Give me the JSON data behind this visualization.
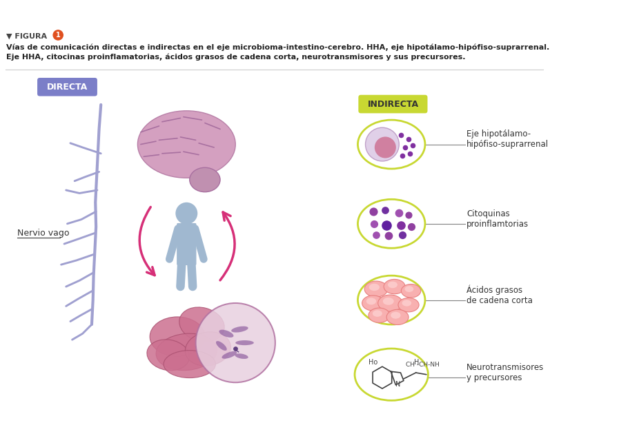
{
  "title_tag": "▼ FIGURA",
  "title_num": "1",
  "subtitle1": "Vías de comunicación directas e indirectas en el eje microbioma-intestino-cerebro. HHA, eje hipotálamo-hipófiso-suprarrenal.",
  "subtitle2": "Eje HHA, citocinas proinflamatorias, ácidos grasos de cadena corta, neurotransmisores y sus precursores.",
  "directa_label": "DIRECTA",
  "directa_bg": "#7B7EC8",
  "indirecta_label": "INDIRECTA",
  "indirecta_bg": "#C8D832",
  "nervio_vago_label": "Nervio vago",
  "bg_color": "#ffffff",
  "arrow_color": "#D63078",
  "brain_color": "#D4A0C0",
  "intestine_color": "#C87090",
  "body_color": "#A0B8D0",
  "circle_border_color": "#C8D832",
  "circle1_label": "Eje hipotálamo-\nhipófiso-suprarrenal",
  "circle2_label": "Citoquinas\nproinflamtorias",
  "circle3_label": "Ácidos grasos\nde cadena corta",
  "circle4_label": "Neurotransmisores\ny precursores",
  "purple_dot_color": "#8B3A8B",
  "light_purple_dot": "#C070C0",
  "pink_dot_color": "#F0A0A0",
  "light_pink_dot": "#F8C8C8"
}
